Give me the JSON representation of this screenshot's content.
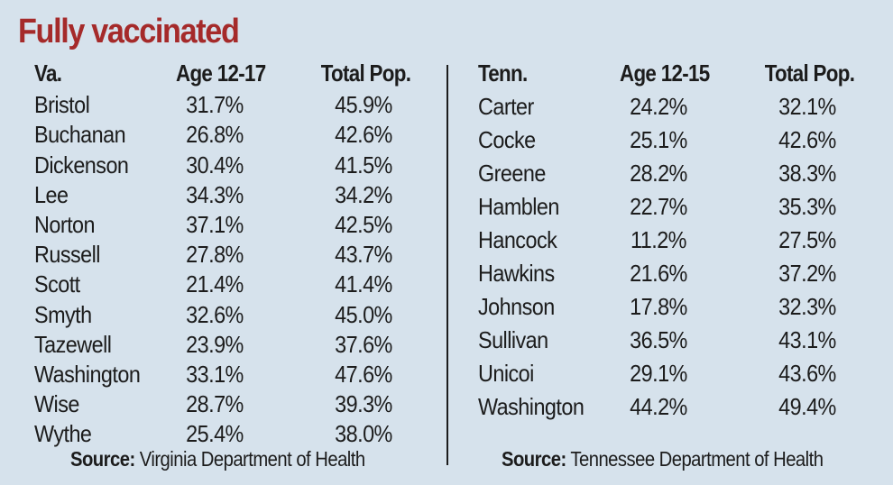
{
  "chart_data": {
    "type": "table",
    "title": "Fully vaccinated",
    "tables": [
      {
        "id": "va",
        "headers": [
          "Va.",
          "Age 12-17",
          "Total Pop."
        ],
        "rows": [
          [
            "Bristol",
            "31.7%",
            "45.9%"
          ],
          [
            "Buchanan",
            "26.8%",
            "42.6%"
          ],
          [
            "Dickenson",
            "30.4%",
            "41.5%"
          ],
          [
            "Lee",
            "34.3%",
            "34.2%"
          ],
          [
            "Norton",
            "37.1%",
            "42.5%"
          ],
          [
            "Russell",
            "27.8%",
            "43.7%"
          ],
          [
            "Scott",
            "21.4%",
            "41.4%"
          ],
          [
            "Smyth",
            "32.6%",
            "45.0%"
          ],
          [
            "Tazewell",
            "23.9%",
            "37.6%"
          ],
          [
            "Washington",
            "33.1%",
            "47.6%"
          ],
          [
            "Wise",
            "28.7%",
            "39.3%"
          ],
          [
            "Wythe",
            "25.4%",
            "38.0%"
          ]
        ],
        "source_label": "Source:",
        "source_text": "Virginia Department of Health"
      },
      {
        "id": "tn",
        "headers": [
          "Tenn.",
          "Age 12-15",
          "Total Pop."
        ],
        "rows": [
          [
            "Carter",
            "24.2%",
            "32.1%"
          ],
          [
            "Cocke",
            "25.1%",
            "42.6%"
          ],
          [
            "Greene",
            "28.2%",
            "38.3%"
          ],
          [
            "Hamblen",
            "22.7%",
            "35.3%"
          ],
          [
            "Hancock",
            "11.2%",
            "27.5%"
          ],
          [
            "Hawkins",
            "21.6%",
            "37.2%"
          ],
          [
            "Johnson",
            "17.8%",
            "32.3%"
          ],
          [
            "Sullivan",
            "36.5%",
            "43.1%"
          ],
          [
            "Unicoi",
            "29.1%",
            "43.6%"
          ],
          [
            "Washington",
            "44.2%",
            "49.4%"
          ]
        ],
        "source_label": "Source:",
        "source_text": "Tennessee Department of Health"
      }
    ]
  },
  "colors": {
    "background": "#d6e2ec",
    "title": "#a52a2a",
    "text": "#1c1c1c"
  }
}
